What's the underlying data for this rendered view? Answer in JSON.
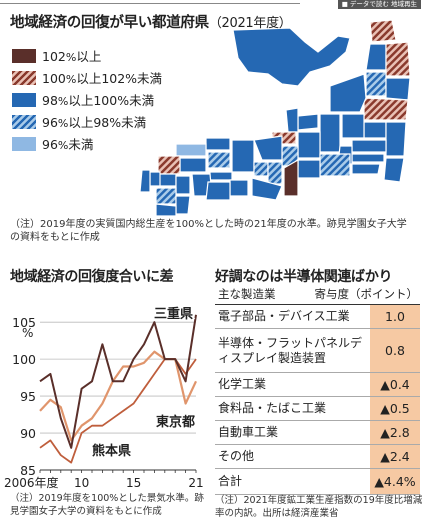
{
  "header": {
    "tag": "■ データで読む 地域再生"
  },
  "map_section": {
    "title": "地域経済の回復が早い都道府県",
    "subtitle": "（2021年度）",
    "colors": {
      "over102": "#5a2f2a",
      "r100_102": "#8a3a2d",
      "r98_100": "#2568b3",
      "r96_98": "#2568b3",
      "under96": "#8fb8e3"
    },
    "legend": [
      {
        "id": "over102",
        "value": "102",
        "unit": "%",
        "rest": "以上"
      },
      {
        "id": "r100_102",
        "value": "100",
        "unit": "%",
        "rest": "以上102%未満"
      },
      {
        "id": "r98_100",
        "value": "98",
        "unit": "%",
        "rest": "以上100%未満"
      },
      {
        "id": "r96_98",
        "value": "96",
        "unit": "%",
        "rest": "以上98%未満"
      },
      {
        "id": "under96",
        "value": "96",
        "unit": "%",
        "rest": "未満"
      }
    ],
    "note": "（注）2019年度の実質国内総生産を100%とした時の21年度の水準。跡見学園女子大学の資料をもとに作成"
  },
  "line_section": {
    "title": "地域経済の回復度合いに差",
    "note": "（注）2019年度を100%とした景気水準。跡見学園女子大学の資料をもとに作成"
  },
  "chart_data": {
    "type": "line",
    "x": [
      2006,
      2007,
      2008,
      2009,
      2010,
      2011,
      2012,
      2013,
      2014,
      2015,
      2016,
      2017,
      2018,
      2019,
      2020,
      2021
    ],
    "x_tick_labels": [
      {
        "x": 2006,
        "label": "2006年度"
      },
      {
        "x": 2010,
        "label": "10"
      },
      {
        "x": 2015,
        "label": "15"
      },
      {
        "x": 2021,
        "label": "21"
      }
    ],
    "ylim": [
      85,
      108
    ],
    "y_ticks": [
      85,
      90,
      95,
      100,
      105
    ],
    "ylabel": "%",
    "grid": true,
    "series": [
      {
        "name": "三重県",
        "color": "#5a2f2a",
        "width": 2,
        "values": [
          97,
          98,
          92,
          88,
          96,
          97,
          102,
          97,
          97,
          100,
          102,
          105,
          100,
          100,
          97,
          106
        ]
      },
      {
        "name": "東京都",
        "color": "#e0956c",
        "width": 2.2,
        "values": [
          93,
          94.5,
          93.5,
          89,
          91,
          92,
          94,
          97,
          99,
          99,
          99.5,
          101,
          100,
          100,
          94,
          97
        ]
      },
      {
        "name": "熊本県",
        "color": "#bf5e3c",
        "width": 1.8,
        "values": [
          88,
          89,
          87,
          86,
          90,
          91,
          91,
          92,
          93,
          94,
          96,
          98,
          100,
          100,
          98,
          100
        ]
      }
    ]
  },
  "table_section": {
    "title": "好調なのは半導体関連ばかり",
    "col1": "主な製造業",
    "col2": "寄与度（ポイント）",
    "rows": [
      {
        "name": "電子部品・デバイス工業",
        "value": "1.0"
      },
      {
        "name": "半導体・フラットパネルディスプレイ製造装置",
        "value": "0.8"
      },
      {
        "name": "化学工業",
        "value": "▲0.4"
      },
      {
        "name": "食料品・たばこ工業",
        "value": "▲0.5"
      },
      {
        "name": "自動車工業",
        "value": "▲2.8"
      },
      {
        "name": "その他",
        "value": "▲2.4"
      },
      {
        "name": "合計",
        "value": "▲4.4%"
      }
    ],
    "note": "（注）2021年度鉱工業生産指数の19年度比増減率の内訳。出所は経済産業省"
  }
}
